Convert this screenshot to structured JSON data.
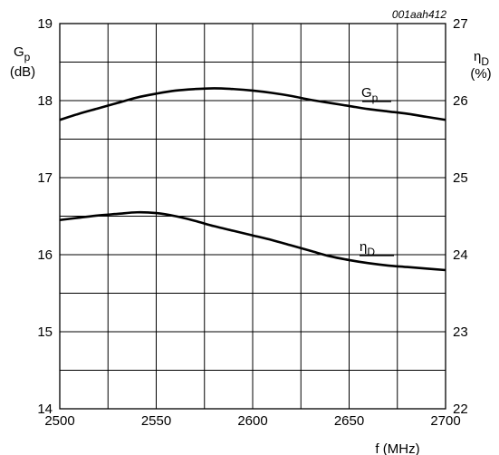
{
  "chart_data": {
    "type": "line",
    "figure_code": "001aah412",
    "x_axis": {
      "label": "f (MHz)",
      "range": [
        2500,
        2700
      ],
      "ticks": [
        2500,
        2550,
        2600,
        2650,
        2700
      ],
      "minor_step": 25
    },
    "y_left": {
      "label_symbol": "G",
      "label_sub": "p",
      "label_unit": "(dB)",
      "range": [
        14,
        19
      ],
      "ticks": [
        14,
        15,
        16,
        17,
        18,
        19
      ],
      "minor_step": 0.5
    },
    "y_right": {
      "label_symbol": "η",
      "label_sub": "D",
      "label_unit": "(%)",
      "range": [
        22,
        27
      ],
      "ticks": [
        22,
        23,
        24,
        25,
        26,
        27
      ]
    },
    "grid": true,
    "series": [
      {
        "name": "Gp",
        "label_symbol": "G",
        "label_sub": "p",
        "axis": "left",
        "x": [
          2500,
          2510,
          2520,
          2530,
          2540,
          2550,
          2560,
          2570,
          2580,
          2590,
          2600,
          2610,
          2620,
          2630,
          2640,
          2650,
          2660,
          2670,
          2680,
          2690,
          2700
        ],
        "y": [
          17.75,
          17.83,
          17.9,
          17.97,
          18.04,
          18.09,
          18.13,
          18.15,
          18.16,
          18.15,
          18.13,
          18.1,
          18.06,
          18.01,
          17.97,
          17.93,
          17.89,
          17.86,
          17.83,
          17.79,
          17.75
        ]
      },
      {
        "name": "ηD",
        "label_symbol": "η",
        "label_sub": "D",
        "axis": "right",
        "x": [
          2500,
          2510,
          2520,
          2530,
          2540,
          2550,
          2560,
          2570,
          2580,
          2590,
          2600,
          2610,
          2620,
          2630,
          2640,
          2650,
          2660,
          2670,
          2680,
          2690,
          2700
        ],
        "y": [
          24.45,
          24.48,
          24.51,
          24.53,
          24.55,
          24.54,
          24.5,
          24.44,
          24.37,
          24.31,
          24.25,
          24.19,
          24.12,
          24.05,
          23.98,
          23.93,
          23.89,
          23.86,
          23.84,
          23.82,
          23.8
        ]
      }
    ]
  }
}
